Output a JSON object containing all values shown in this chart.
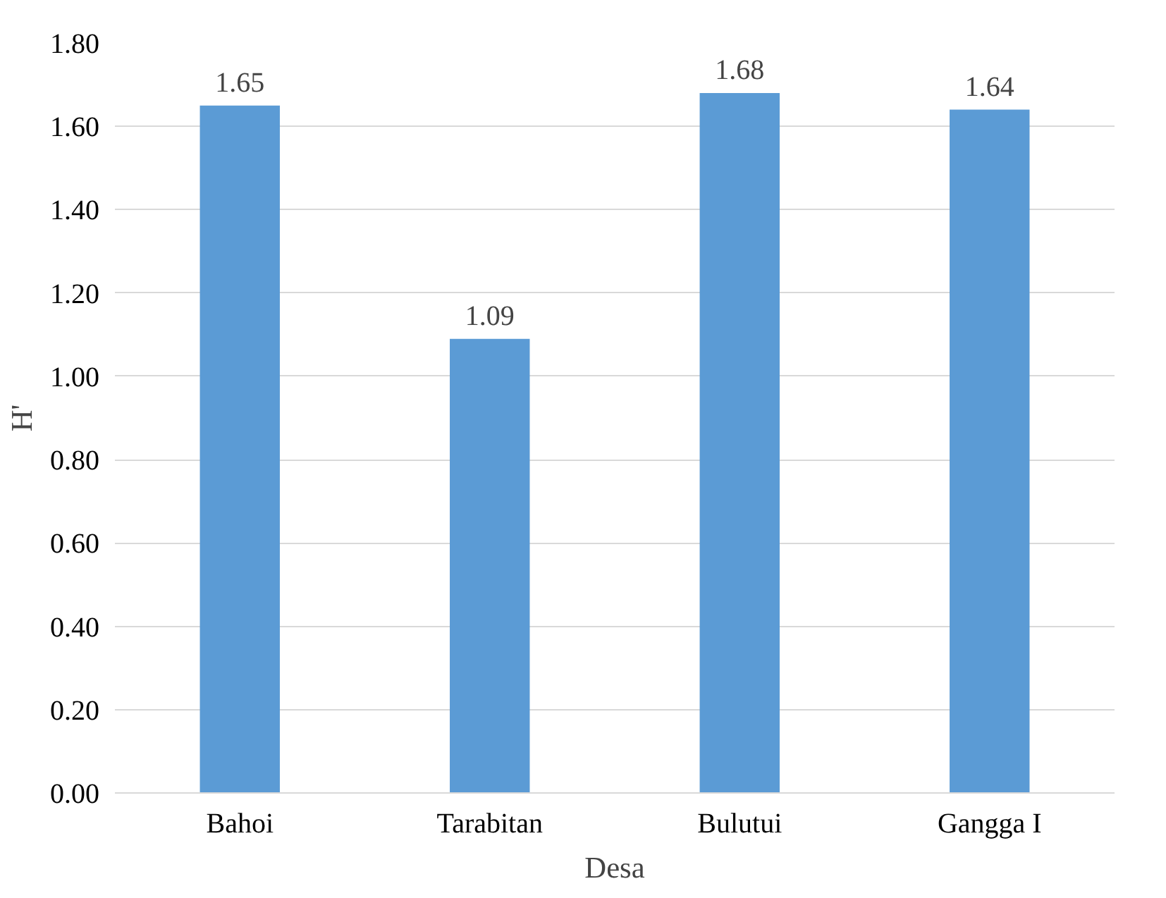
{
  "chart_data": {
    "type": "bar",
    "xlabel": "Desa",
    "ylabel": "H'",
    "categories": [
      "Bahoi",
      "Tarabitan",
      "Bulutui",
      "Gangga I"
    ],
    "values": [
      1.65,
      1.09,
      1.68,
      1.64
    ],
    "color": "#5b9bd5",
    "ylim": [
      0,
      1.8
    ],
    "yticks": [
      {
        "value": 0,
        "label": "0.00"
      },
      {
        "value": 0.2,
        "label": "0.20"
      },
      {
        "value": 0.4,
        "label": "0.40"
      },
      {
        "value": 0.6,
        "label": "0.60"
      },
      {
        "value": 0.8,
        "label": "0.80"
      },
      {
        "value": 1.0,
        "label": "1.00"
      },
      {
        "value": 1.2,
        "label": "1.20"
      },
      {
        "value": 1.4,
        "label": "1.40"
      },
      {
        "value": 1.6,
        "label": "1.60"
      },
      {
        "value": 1.8,
        "label": "1.80"
      }
    ],
    "grid": "y",
    "data_labels": true
  }
}
